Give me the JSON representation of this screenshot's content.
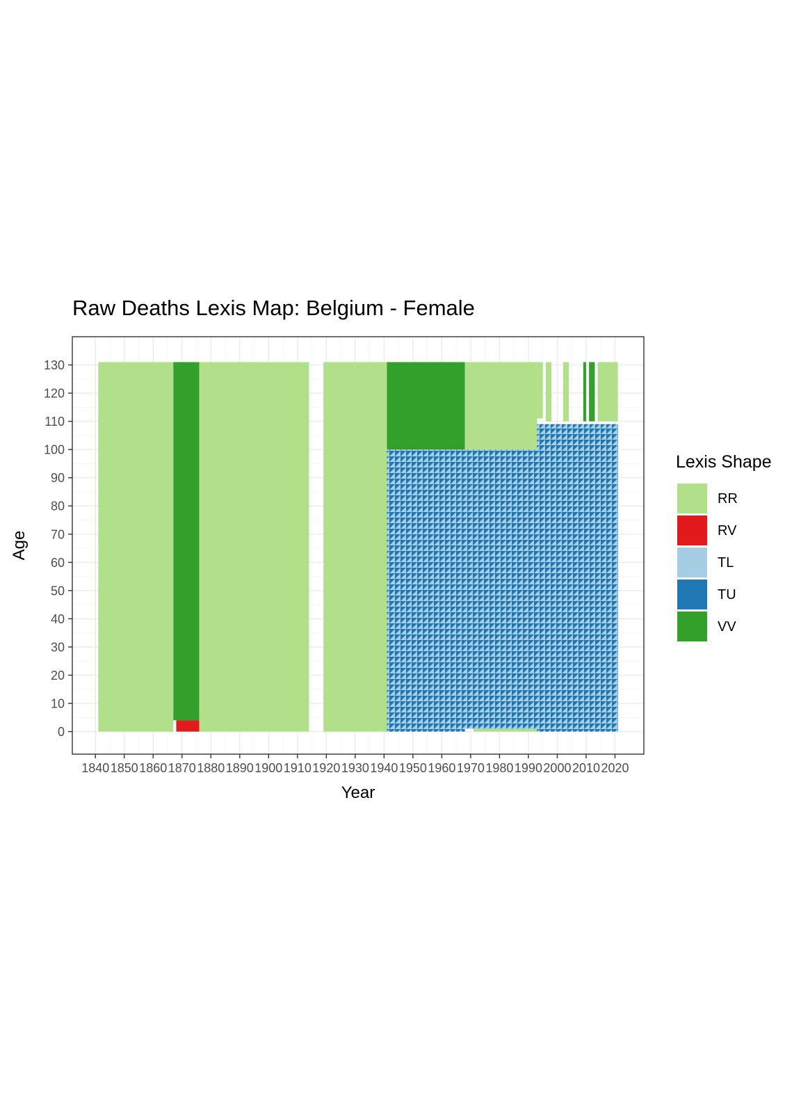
{
  "chart_data": {
    "type": "heatmap",
    "title": "Raw Deaths Lexis Map: Belgium - Female",
    "xlabel": "Year",
    "ylabel": "Age",
    "xlim": [
      1832,
      2030
    ],
    "ylim": [
      -8,
      140
    ],
    "x_ticks": [
      1840,
      1850,
      1860,
      1870,
      1880,
      1890,
      1900,
      1910,
      1920,
      1930,
      1940,
      1950,
      1960,
      1970,
      1980,
      1990,
      2000,
      2010,
      2020
    ],
    "x_tick_labels": [
      "1840",
      "1850",
      "1860",
      "1870",
      "1880",
      "1890",
      "1900",
      "1910",
      "1920",
      "1930",
      "1940",
      "1950",
      "1960",
      "1970",
      "1980",
      "1990",
      "2000",
      "2010",
      "2020"
    ],
    "y_ticks": [
      0,
      10,
      20,
      30,
      40,
      50,
      60,
      70,
      80,
      90,
      100,
      110,
      120,
      130
    ],
    "y_tick_labels": [
      "0",
      "10",
      "20",
      "30",
      "40",
      "50",
      "60",
      "70",
      "80",
      "90",
      "100",
      "110",
      "120",
      "130"
    ],
    "grid": true,
    "legend": {
      "title": "Lexis Shape",
      "placement": "right",
      "entries": [
        {
          "key": "RR",
          "label": "RR",
          "color": "#b2df8a"
        },
        {
          "key": "RV",
          "label": "RV",
          "color": "#e31a1c"
        },
        {
          "key": "TL",
          "label": "TL",
          "color": "#a6cee3"
        },
        {
          "key": "TU",
          "label": "TU",
          "color": "#1f78b4"
        },
        {
          "key": "VV",
          "label": "VV",
          "color": "#33a02c"
        }
      ]
    },
    "regions": [
      {
        "shape": "RR",
        "x": [
          1841,
          1867
        ],
        "age": [
          0,
          131
        ]
      },
      {
        "shape": "VV",
        "x": [
          1867,
          1876
        ],
        "age": [
          4,
          131
        ]
      },
      {
        "shape": "RV",
        "x": [
          1868,
          1876
        ],
        "age": [
          0,
          4
        ]
      },
      {
        "shape": "RR",
        "x": [
          1876,
          1914
        ],
        "age": [
          0,
          131
        ]
      },
      {
        "shape": "RR",
        "x": [
          1919,
          1941
        ],
        "age": [
          0,
          131
        ]
      },
      {
        "shape": "VV",
        "x": [
          1941,
          1968
        ],
        "age": [
          100,
          131
        ]
      },
      {
        "shape": "TU",
        "x": [
          1941,
          1968
        ],
        "age": [
          0,
          100
        ]
      },
      {
        "shape": "RR",
        "x": [
          1968,
          1993
        ],
        "age": [
          100,
          131
        ]
      },
      {
        "shape": "TU",
        "x": [
          1968,
          1993
        ],
        "age": [
          1,
          100
        ]
      },
      {
        "shape": "RR",
        "x": [
          1971,
          1993
        ],
        "age": [
          0,
          1
        ]
      },
      {
        "shape": "TU",
        "x": [
          1993,
          2021
        ],
        "age": [
          0,
          109
        ]
      },
      {
        "shape": "RR",
        "x": [
          1993,
          1995
        ],
        "age": [
          111,
          131
        ]
      },
      {
        "shape": "RR",
        "x": [
          1996,
          1998
        ],
        "age": [
          110,
          131
        ]
      },
      {
        "shape": "RR",
        "x": [
          2002,
          2004
        ],
        "age": [
          110,
          131
        ]
      },
      {
        "shape": "VV",
        "x": [
          2009,
          2010
        ],
        "age": [
          110,
          131
        ]
      },
      {
        "shape": "VV",
        "x": [
          2011,
          2013
        ],
        "age": [
          110,
          131
        ]
      },
      {
        "shape": "RR",
        "x": [
          2014,
          2021
        ],
        "age": [
          110,
          131
        ]
      }
    ]
  }
}
